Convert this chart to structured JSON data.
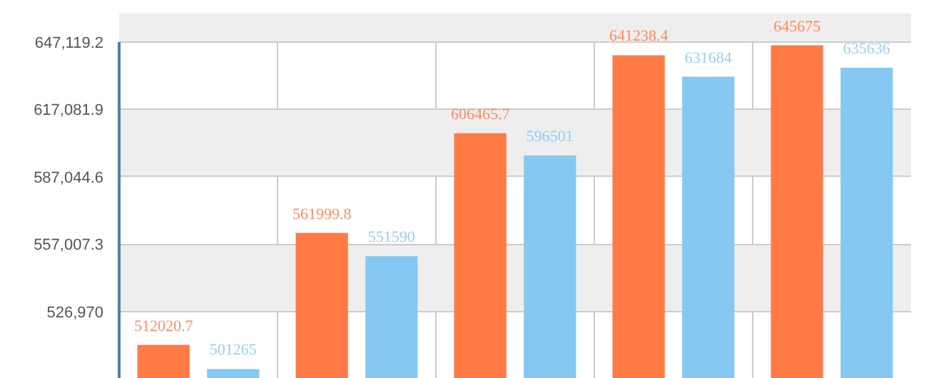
{
  "chart_data": {
    "type": "bar",
    "categories": [
      null,
      null,
      null,
      null,
      null
    ],
    "series": [
      {
        "color": "#ff7a45",
        "values": [
          512020.7,
          561999.8,
          606465.7,
          641238.4,
          645675
        ]
      },
      {
        "color": "#85c8f2",
        "values": [
          501265,
          551590,
          596501,
          631684,
          635636
        ]
      }
    ],
    "ylim": [
      496932.7,
      647119.2
    ],
    "yticks": [
      {
        "value": 526970,
        "label": "526,970"
      },
      {
        "value": 557007.3,
        "label": "557,007.3"
      },
      {
        "value": 587044.6,
        "label": "587,044.6"
      },
      {
        "value": 617081.9,
        "label": "617,081.9"
      },
      {
        "value": 647119.2,
        "label": "647,119.2"
      }
    ],
    "grid": true,
    "data_labels": true,
    "tick_labels": "y"
  }
}
